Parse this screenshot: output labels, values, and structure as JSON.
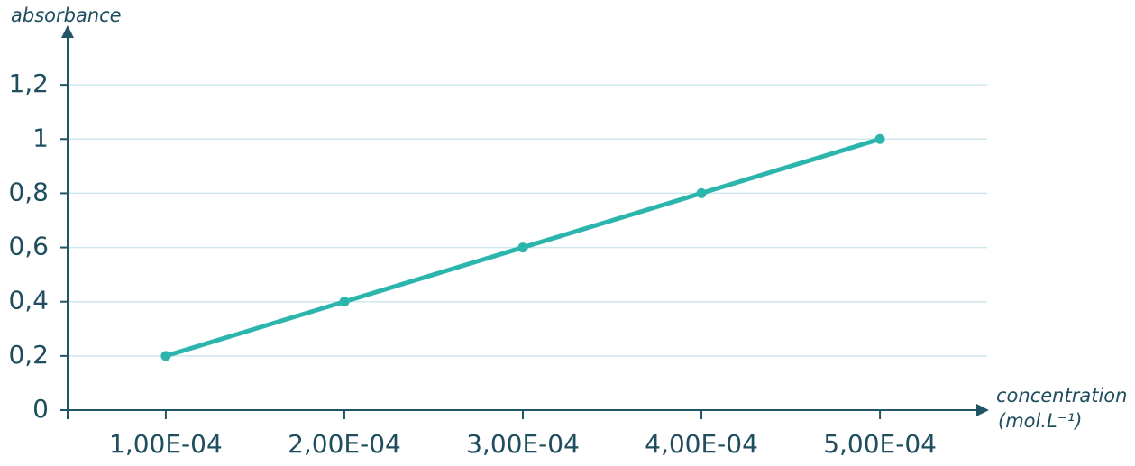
{
  "chart_data": {
    "type": "line",
    "y_label": "absorbance",
    "x_label": [
      "concentration",
      "(mol.L⁻¹)"
    ],
    "x": [
      0.0001,
      0.0002,
      0.0003,
      0.0004,
      0.0005
    ],
    "series": [
      {
        "name": "absorbance",
        "color": "#2bb5ad",
        "values": [
          0.2,
          0.4,
          0.6,
          0.8,
          1
        ]
      }
    ],
    "xlim": [
      4.5e-05,
      0.000555
    ],
    "xticks": [
      {
        "value": 0.0001,
        "label": "1,00E-04"
      },
      {
        "value": 0.0002,
        "label": "2,00E-04"
      },
      {
        "value": 0.0003,
        "label": "3,00E-04"
      },
      {
        "value": 0.0004,
        "label": "4,00E-04"
      },
      {
        "value": 0.0005,
        "label": "5,00E-04"
      }
    ],
    "ylim": [
      0,
      1.38
    ],
    "yticks": [
      0,
      {
        "value": 0.2,
        "label": "0,2"
      },
      {
        "value": 0.4,
        "label": "0,4"
      },
      {
        "value": 0.6,
        "label": "0,6"
      },
      {
        "value": 0.8,
        "label": "0,8"
      },
      1,
      {
        "value": 1.2,
        "label": "1,2"
      }
    ],
    "grid": true
  }
}
